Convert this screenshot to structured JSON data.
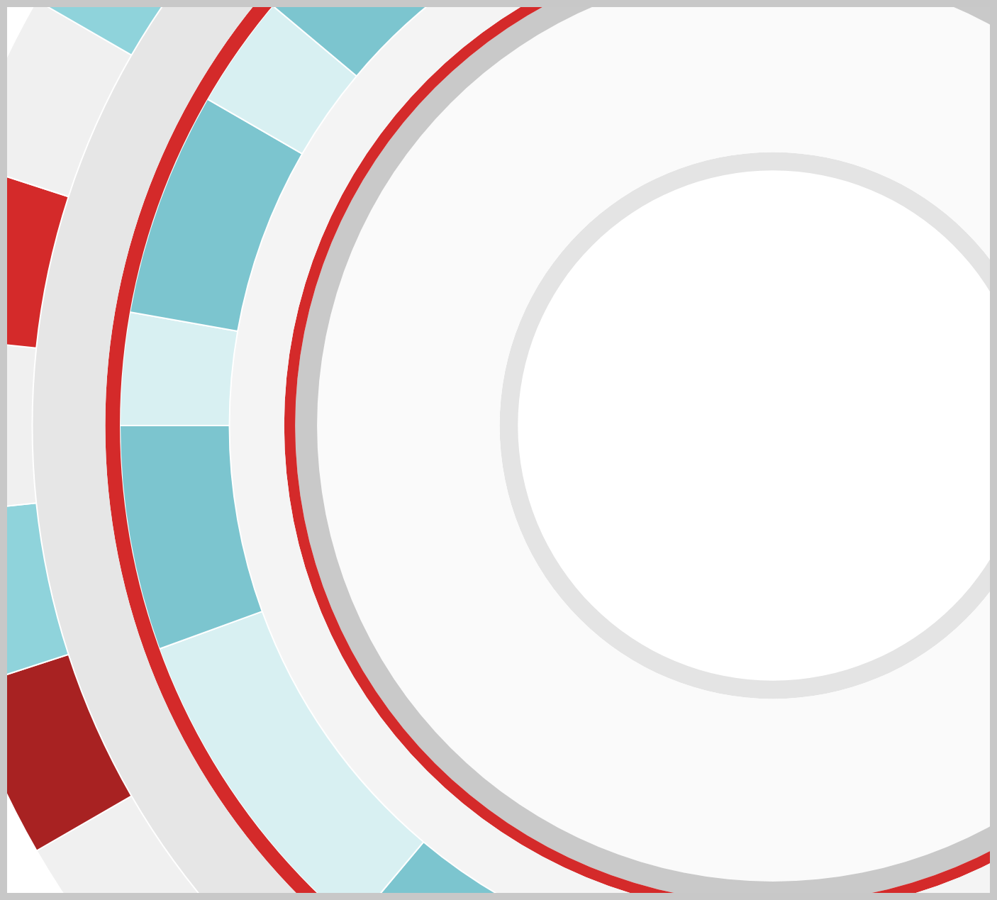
{
  "chart_data": {
    "type": "doughnut",
    "series": [
      {
        "values": [
          1,
          1,
          1,
          1,
          1,
          1,
          1,
          1,
          1,
          1,
          1,
          1,
          1,
          1,
          1,
          1,
          1,
          1,
          1,
          1,
          1,
          1,
          1,
          1,
          1,
          1,
          1,
          1,
          1,
          1
        ],
        "colors": [
          "#d42a2a",
          "#8fd3db",
          "#f0f0f0",
          "#d42a2a",
          "#a82222",
          "#f0f0f0",
          "#8fd3db",
          "#d42a2a",
          "#f0f0f0",
          "#f0f0f0",
          "#d42a2a",
          "#8fd3db",
          "#f0f0f0",
          "#a82222",
          "#d42a2a",
          "#f0f0f0",
          "#8fd3db",
          "#f0f0f0",
          "#d42a2a",
          "#f0f0f0",
          "#a82222",
          "#8fd3db",
          "#f0f0f0",
          "#d42a2a",
          "#f0f0f0",
          "#8fd3db",
          "#d42a2a",
          "#f0f0f0",
          "#a82222",
          "#f0f0f0"
        ]
      },
      {
        "values": [
          1
        ],
        "color": "#e6e6e6"
      },
      {
        "values": [
          1
        ],
        "color": "#d42a2a"
      },
      {
        "values": [
          2,
          1,
          3,
          1,
          2,
          2,
          1,
          3,
          1,
          2,
          2,
          1,
          1,
          3,
          2,
          1,
          2,
          1,
          3,
          2
        ],
        "colors": [
          "#7cc5cf",
          "#d8f0f2",
          "#7cc5cf",
          "#d8f0f2",
          "#7cc5cf",
          "#d8f0f2",
          "#7cc5cf",
          "#d8f0f2",
          "#7cc5cf",
          "#d8f0f2",
          "#7cc5cf",
          "#d8f0f2",
          "#7cc5cf",
          "#d8f0f2",
          "#7cc5cf",
          "#d8f0f2",
          "#7cc5cf",
          "#d8f0f2",
          "#7cc5cf",
          "#d8f0f2"
        ]
      },
      {
        "values": [
          1
        ],
        "color": "#f4f4f4"
      },
      {
        "values": [
          1
        ],
        "color": "#d42a2a"
      },
      {
        "values": [
          1
        ],
        "color": "#c9c9c9"
      },
      {
        "values": [
          1
        ],
        "color": "#fafafa"
      },
      {
        "values": [
          1
        ],
        "color": "#e4e4e4"
      }
    ]
  }
}
